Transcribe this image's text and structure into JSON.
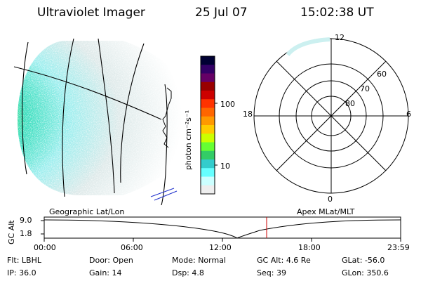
{
  "header": {
    "title": "Ultraviolet Imager",
    "date": "25 Jul 07",
    "time": "15:02:38 UT"
  },
  "colorbar": {
    "label": "photon cm⁻²s⁻¹",
    "ticks": [
      "100",
      "10"
    ],
    "colors": [
      "#000033",
      "#330066",
      "#660066",
      "#990000",
      "#cc0000",
      "#ff3300",
      "#ff6600",
      "#ff9900",
      "#ffcc00",
      "#ccff00",
      "#66ff33",
      "#33cc66",
      "#33cccc",
      "#66ffff",
      "#ccffff",
      "#eeeeee"
    ]
  },
  "polar_plot": {
    "mlt_labels": {
      "top": "12",
      "left": "18",
      "right": "6",
      "bottom": "0"
    },
    "lat_labels": [
      "60",
      "70",
      "80"
    ]
  },
  "timeline": {
    "y_axis_label": "GC Alt",
    "y_ticks": [
      "9.0",
      "1.8"
    ],
    "left_title": "Geographic Lat/Lon",
    "right_title": "Apex MLat/MLT",
    "x_ticks": [
      "00:00",
      "06:00",
      "12:00",
      "18:00",
      "23:59"
    ]
  },
  "footer": {
    "row1": [
      {
        "label": "Flt:",
        "value": "LBHL"
      },
      {
        "label": "Door:",
        "value": "Open"
      },
      {
        "label": "Mode:",
        "value": "Normal"
      },
      {
        "label": "GC Alt:",
        "value": "4.6 Re"
      },
      {
        "label": "GLat:",
        "value": "-56.0"
      }
    ],
    "row2": [
      {
        "label": "IP:",
        "value": "36.0"
      },
      {
        "label": "Gain:",
        "value": "14"
      },
      {
        "label": "Dsp:",
        "value": "4.8"
      },
      {
        "label": "Seq:",
        "value": "39"
      },
      {
        "label": "GLon:",
        "value": "350.6"
      }
    ]
  },
  "colors": {
    "marker_line": "#cc0000",
    "axis": "#000000"
  }
}
